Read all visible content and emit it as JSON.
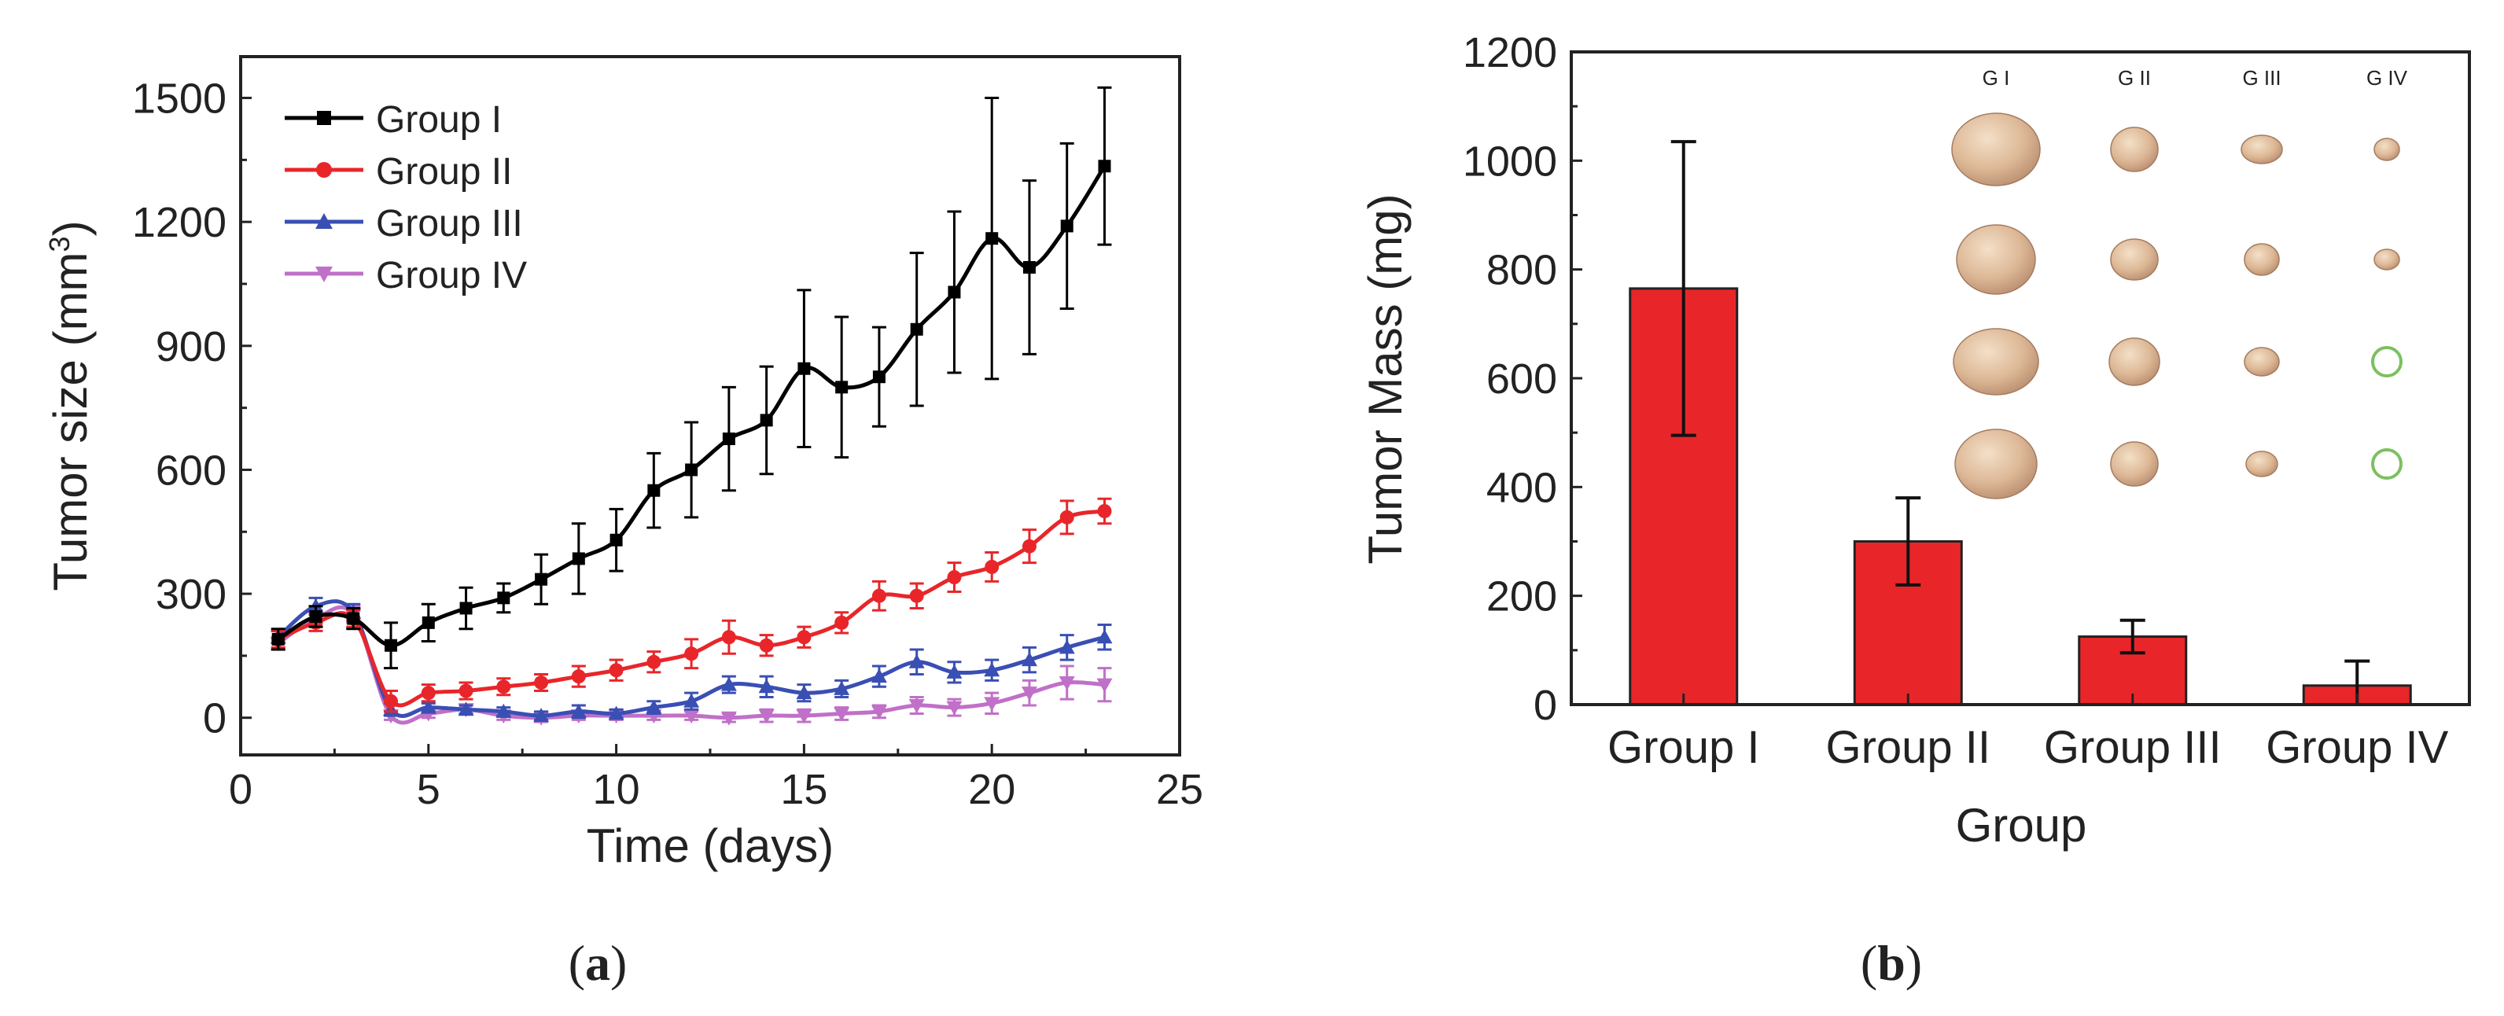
{
  "chart_data": [
    {
      "type": "line",
      "panel_label": "(a)",
      "title": "",
      "xlabel": "Time (days)",
      "ylabel_main": "Tumor size (mm",
      "ylabel_sup": "3",
      "ylabel_end": ")",
      "xlim": [
        0,
        25
      ],
      "ylim": [
        -90,
        1600
      ],
      "xticks": [
        0,
        5,
        10,
        15,
        20,
        25
      ],
      "yticks": [
        0,
        300,
        600,
        900,
        1200,
        1500
      ],
      "legend_position": "top-left",
      "x": [
        1,
        2,
        3,
        4,
        5,
        6,
        7,
        8,
        9,
        10,
        11,
        12,
        13,
        14,
        15,
        16,
        17,
        18,
        19,
        20,
        21,
        22,
        23
      ],
      "series": [
        {
          "name": "Group I",
          "color": "#000000",
          "marker": "square",
          "values": [
            190,
            245,
            240,
            175,
            230,
            265,
            290,
            335,
            385,
            430,
            550,
            600,
            675,
            720,
            845,
            800,
            825,
            940,
            1030,
            1160,
            1090,
            1190,
            1335
          ],
          "errors": [
            25,
            25,
            25,
            55,
            45,
            50,
            35,
            60,
            85,
            75,
            90,
            115,
            125,
            130,
            190,
            170,
            120,
            185,
            195,
            340,
            210,
            200,
            190
          ]
        },
        {
          "name": "Group II",
          "color": "#e8262a",
          "marker": "circle",
          "values": [
            190,
            230,
            240,
            40,
            60,
            65,
            75,
            85,
            100,
            115,
            135,
            155,
            195,
            175,
            195,
            230,
            295,
            295,
            340,
            365,
            415,
            485,
            500
          ],
          "errors": [
            20,
            20,
            20,
            25,
            20,
            20,
            20,
            20,
            25,
            25,
            25,
            35,
            40,
            25,
            25,
            25,
            35,
            30,
            35,
            35,
            40,
            40,
            30
          ]
        },
        {
          "name": "Group III",
          "color": "#3a4fb4",
          "marker": "triangle-up",
          "values": [
            195,
            270,
            255,
            20,
            25,
            20,
            15,
            5,
            15,
            10,
            25,
            40,
            80,
            75,
            60,
            70,
            100,
            135,
            110,
            115,
            140,
            170,
            195
          ],
          "errors": [
            15,
            20,
            20,
            15,
            10,
            10,
            10,
            10,
            15,
            10,
            15,
            20,
            20,
            25,
            20,
            20,
            25,
            30,
            25,
            25,
            30,
            30,
            30
          ]
        },
        {
          "name": "Group IV",
          "color": "#c070c8",
          "marker": "triangle-down",
          "values": [
            180,
            240,
            250,
            5,
            10,
            20,
            5,
            0,
            5,
            5,
            5,
            5,
            0,
            5,
            5,
            10,
            15,
            30,
            25,
            35,
            60,
            85,
            80
          ],
          "errors": [
            15,
            20,
            20,
            10,
            10,
            10,
            10,
            10,
            10,
            10,
            10,
            10,
            10,
            15,
            15,
            15,
            15,
            20,
            20,
            25,
            30,
            40,
            40
          ]
        }
      ]
    },
    {
      "type": "bar",
      "panel_label": "(b)",
      "title": "",
      "xlabel": "Group",
      "ylabel": "Tumor Mass (mg)",
      "ylim": [
        0,
        1200
      ],
      "yticks": [
        0,
        200,
        400,
        600,
        800,
        1000,
        1200
      ],
      "categories": [
        "Group I",
        "Group II",
        "Group III",
        "Group IV"
      ],
      "values": [
        765,
        300,
        125,
        35
      ],
      "errors": [
        270,
        80,
        30,
        45
      ],
      "bar_color": "#e8262a",
      "inset": {
        "columns": [
          "G I",
          "G II",
          "G III",
          "G IV"
        ],
        "description": "photographs of excised tumors, 4 per group; two Group IV sites shown as empty green circles"
      }
    }
  ]
}
